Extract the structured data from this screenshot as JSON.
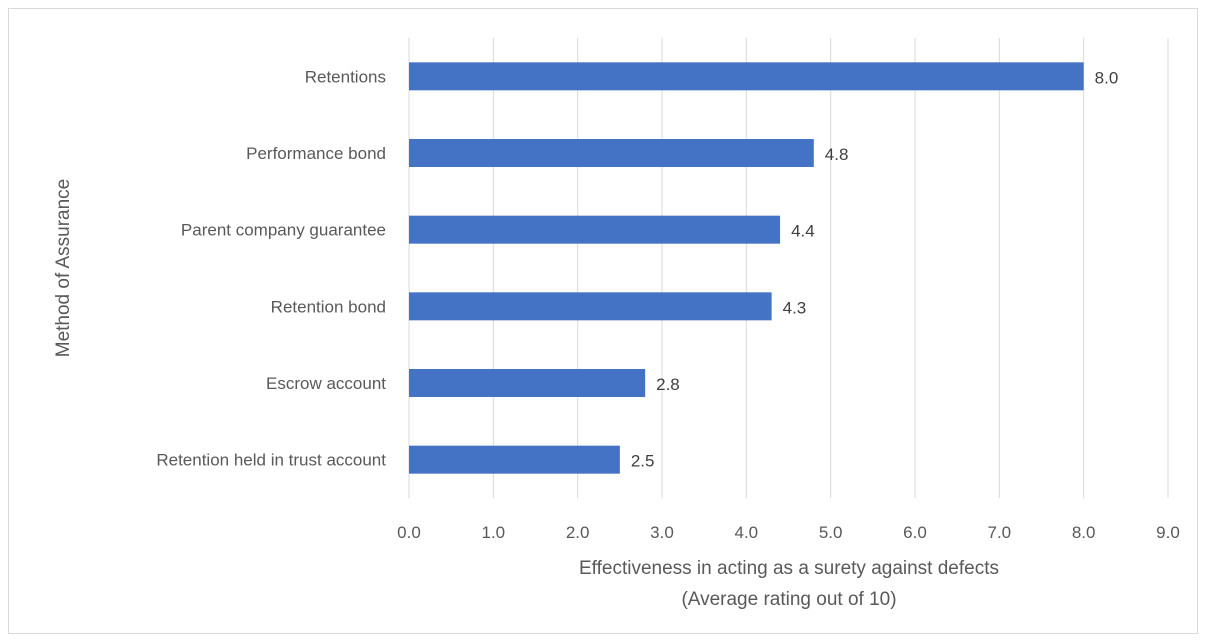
{
  "chart_data": {
    "type": "bar",
    "orientation": "horizontal",
    "categories": [
      "Retentions",
      "Performance bond",
      "Parent company guarantee",
      "Retention bond",
      "Escrow account",
      "Retention held in trust account"
    ],
    "values": [
      8.0,
      4.8,
      4.4,
      4.3,
      2.8,
      2.5
    ],
    "data_labels": [
      "8.0",
      "4.8",
      "4.4",
      "4.3",
      "2.8",
      "2.5"
    ],
    "xlim": [
      0,
      9
    ],
    "x_ticks": [
      "0.0",
      "1.0",
      "2.0",
      "3.0",
      "4.0",
      "5.0",
      "6.0",
      "7.0",
      "8.0",
      "9.0"
    ],
    "xlabel_line1": "Effectiveness in acting as a surety against defects",
    "xlabel_line2": "(Average rating out of 10)",
    "ylabel": "Method of Assurance",
    "bar_color": "#4472c4",
    "grid": "vertical gridlines",
    "legend": "none"
  }
}
